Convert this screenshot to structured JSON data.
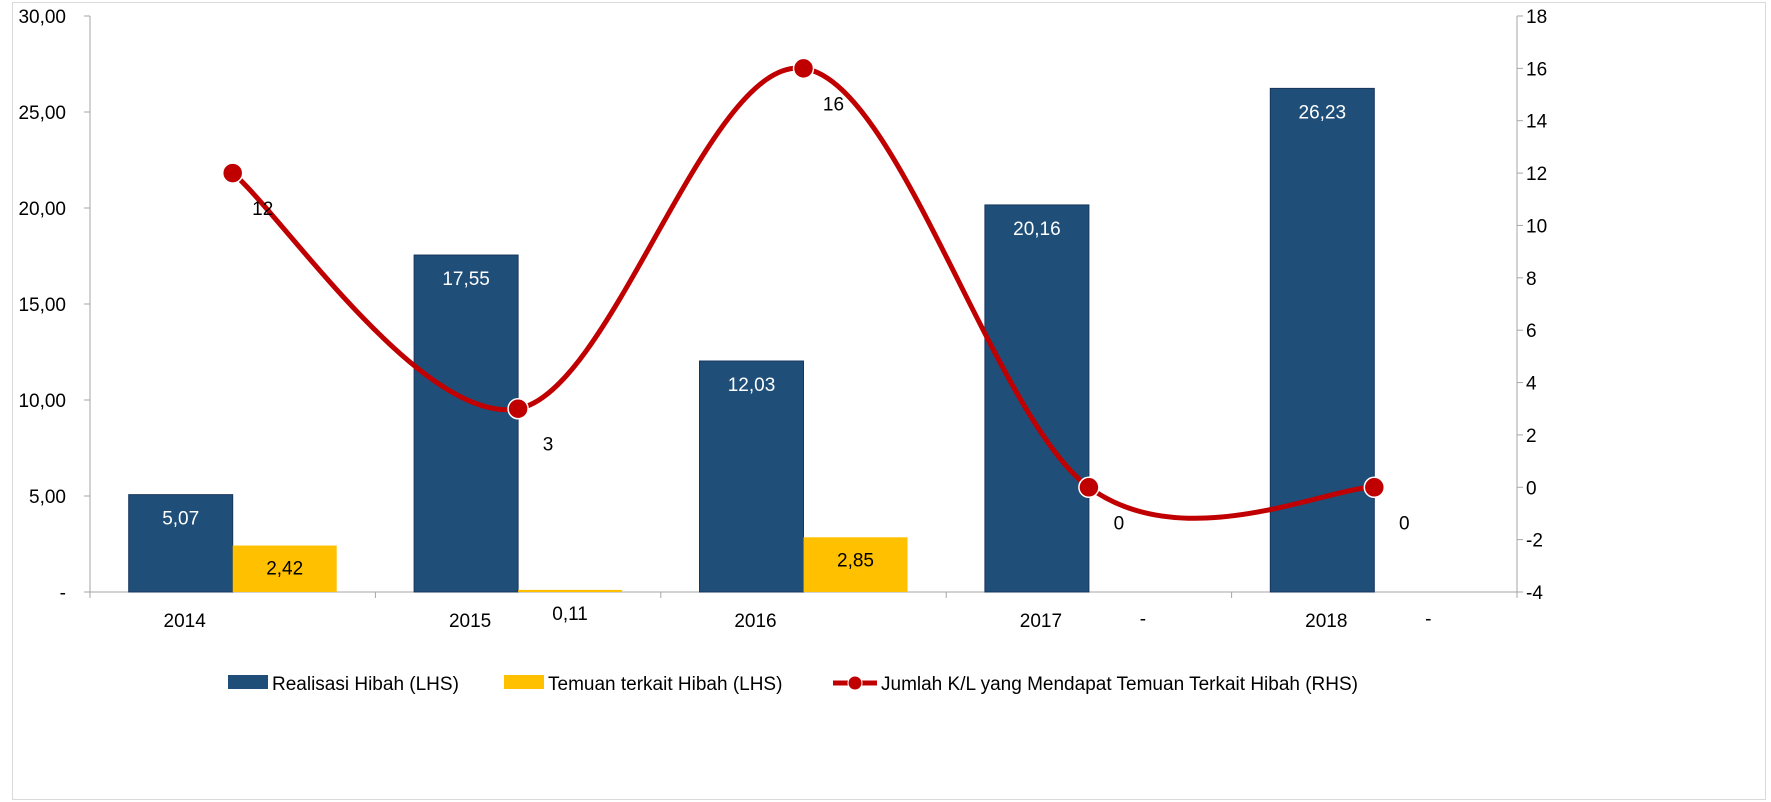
{
  "chart_data": {
    "type": "bar",
    "categories": [
      "2014",
      "2015",
      "2016",
      "2017",
      "2018"
    ],
    "series": [
      {
        "name": "Realisasi Hibah (LHS)",
        "kind": "bar",
        "axis": "left",
        "color": "#1f4e79",
        "values": [
          5.07,
          17.55,
          12.03,
          20.16,
          26.23
        ],
        "labels": [
          "5,07",
          "17,55",
          "12,03",
          "20,16",
          "26,23"
        ]
      },
      {
        "name": "Temuan terkait Hibah (LHS)",
        "kind": "bar",
        "axis": "left",
        "color": "#ffc000",
        "values": [
          2.42,
          0.11,
          2.85,
          0,
          0
        ],
        "labels": [
          "2,42",
          "0,11",
          "2,85",
          "-",
          "-"
        ]
      },
      {
        "name": "Jumlah K/L yang Mendapat Temuan Terkait Hibah (RHS)",
        "kind": "line",
        "axis": "right",
        "color": "#c00000",
        "values": [
          12,
          3,
          16,
          0,
          0
        ],
        "labels": [
          "12",
          "3",
          "16",
          "0",
          "0"
        ]
      }
    ],
    "left_axis": {
      "range": [
        0,
        30
      ],
      "ticks": [
        0,
        5,
        10,
        15,
        20,
        25,
        30
      ],
      "tick_labels": [
        "-",
        "5,00",
        "10,00",
        "15,00",
        "20,00",
        "25,00",
        "30,00"
      ]
    },
    "right_axis": {
      "range": [
        -4,
        18
      ],
      "ticks": [
        -4,
        -2,
        0,
        2,
        4,
        6,
        8,
        10,
        12,
        14,
        16,
        18
      ],
      "tick_labels": [
        "-4",
        "-2",
        "0",
        "2",
        "4",
        "6",
        "8",
        "10",
        "12",
        "14",
        "16",
        "18"
      ]
    },
    "grid": false,
    "legend_position": "bottom"
  }
}
